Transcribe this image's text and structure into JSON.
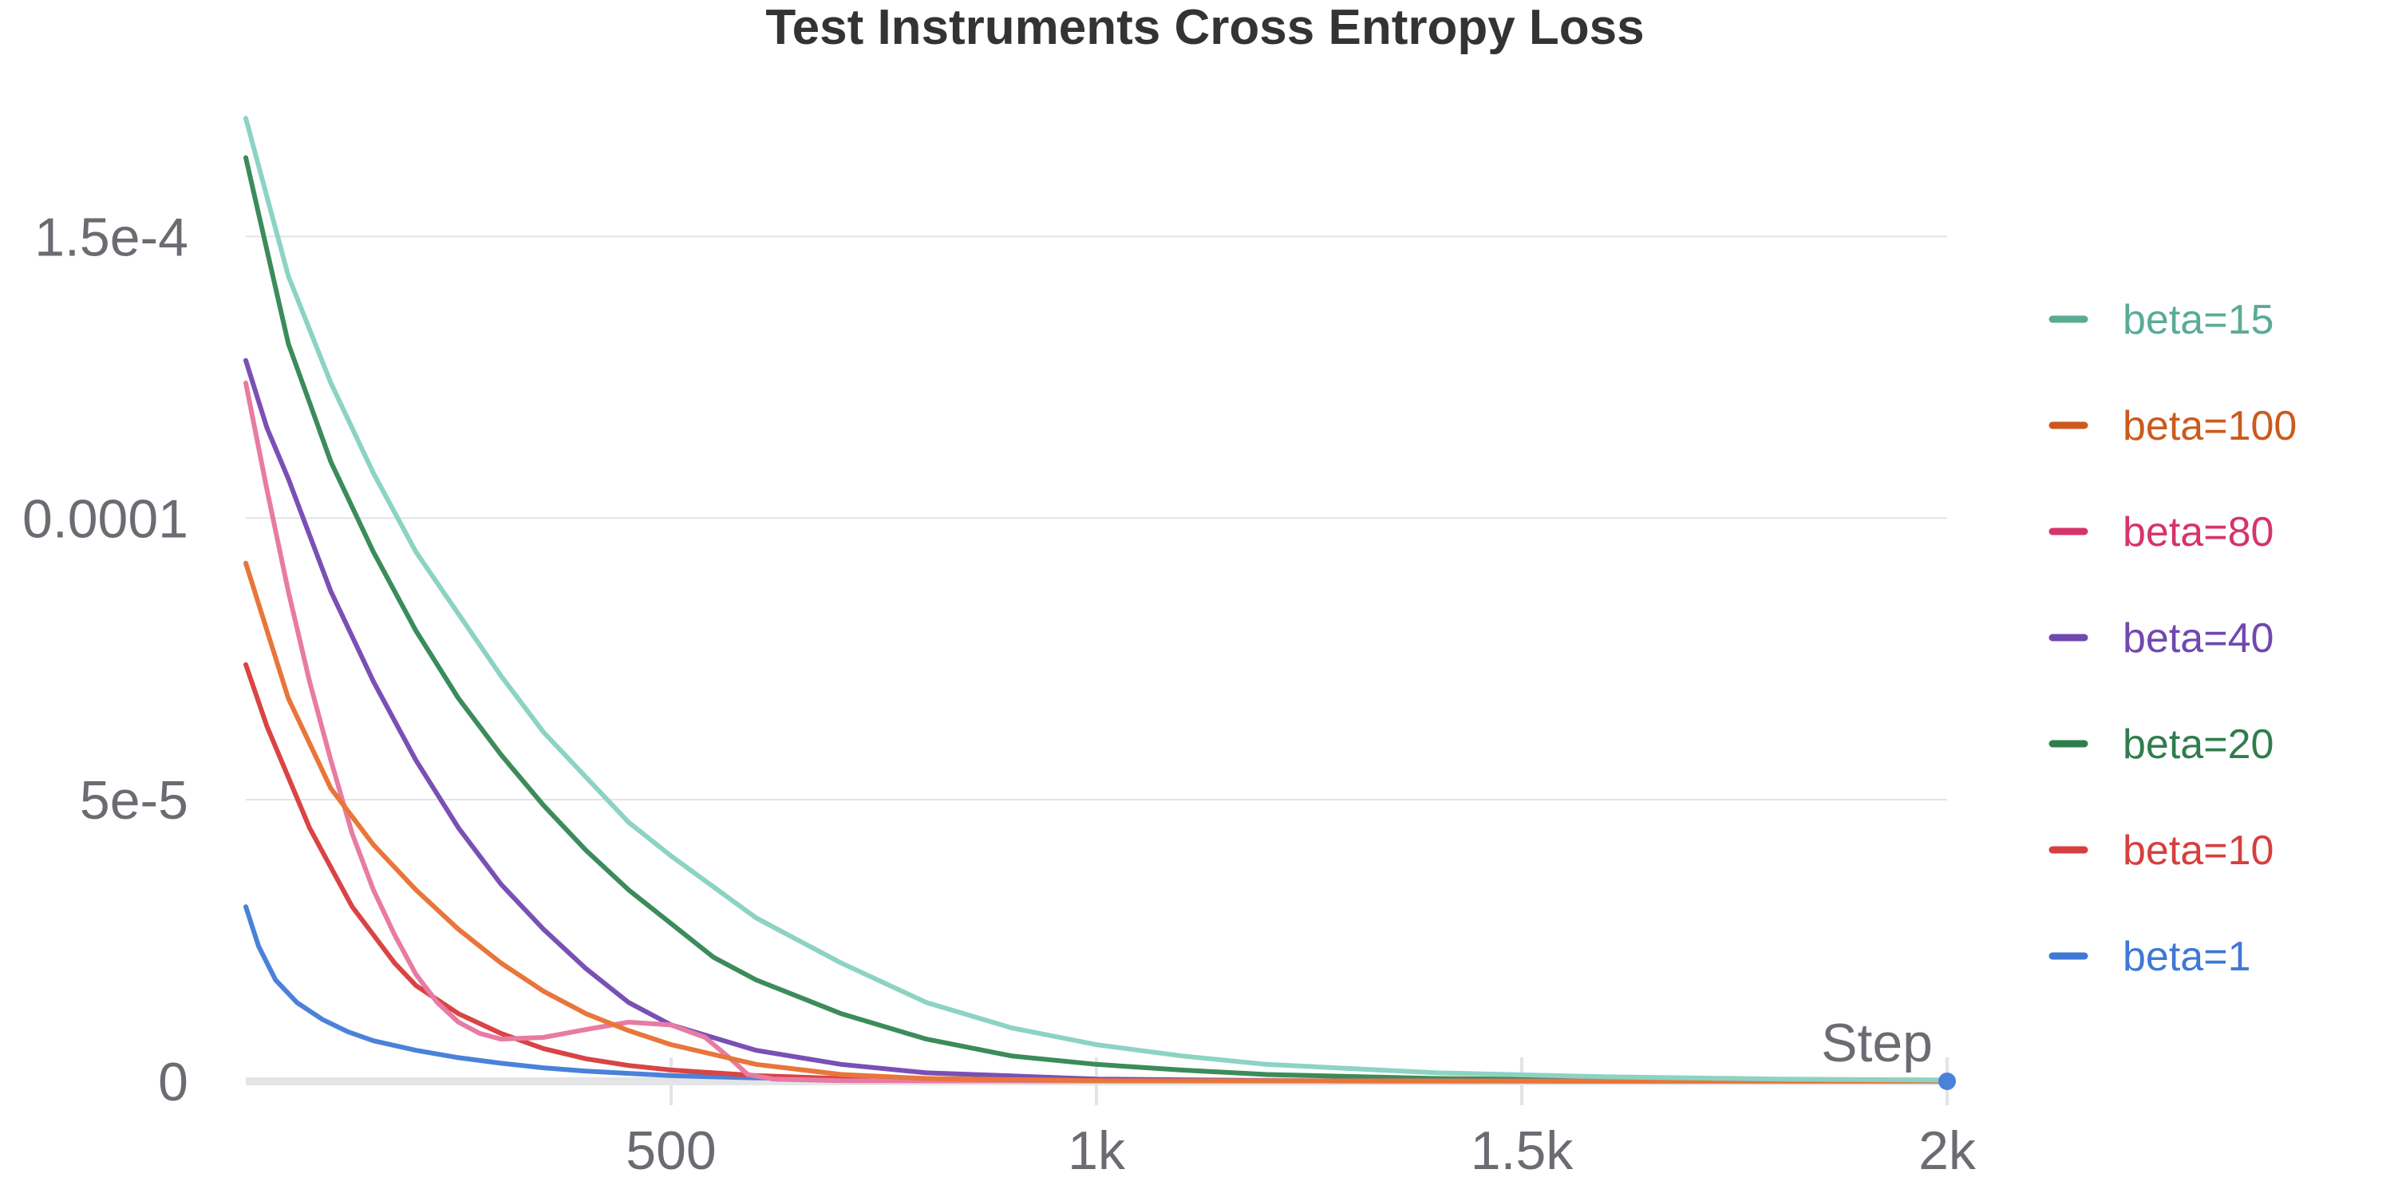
{
  "chart_data": {
    "type": "line",
    "title": "Test Instruments Cross Entropy Loss",
    "xlabel": "Step",
    "ylabel": "",
    "xlim": [
      0,
      2000
    ],
    "ylim": [
      0,
      0.000175
    ],
    "x_ticks": [
      {
        "value": 500,
        "label": "500"
      },
      {
        "value": 1000,
        "label": "1k"
      },
      {
        "value": 1500,
        "label": "1.5k"
      },
      {
        "value": 2000,
        "label": "2k"
      }
    ],
    "y_ticks": [
      {
        "value": 0,
        "label": "0"
      },
      {
        "value": 5e-05,
        "label": "5e-5"
      },
      {
        "value": 0.0001,
        "label": "0.0001"
      },
      {
        "value": 0.00015,
        "label": "1.5e-4"
      }
    ],
    "grid": true,
    "legend_position": "right",
    "series": [
      {
        "name": "beta=15",
        "color": "#8cd3c3",
        "legend_color": "#5aab96",
        "points": [
          [
            0,
            0.000171
          ],
          [
            50,
            0.000143
          ],
          [
            100,
            0.000124
          ],
          [
            150,
            0.000108
          ],
          [
            200,
            9.4e-05
          ],
          [
            250,
            8.3e-05
          ],
          [
            300,
            7.2e-05
          ],
          [
            350,
            6.2e-05
          ],
          [
            400,
            5.4e-05
          ],
          [
            450,
            4.6e-05
          ],
          [
            500,
            4e-05
          ],
          [
            600,
            2.9e-05
          ],
          [
            700,
            2.1e-05
          ],
          [
            800,
            1.4e-05
          ],
          [
            900,
            9.5e-06
          ],
          [
            1000,
            6.5e-06
          ],
          [
            1100,
            4.5e-06
          ],
          [
            1200,
            3e-06
          ],
          [
            1400,
            1.5e-06
          ],
          [
            1600,
            8e-07
          ],
          [
            1800,
            4e-07
          ],
          [
            2000,
            2e-07
          ]
        ]
      },
      {
        "name": "beta=100",
        "color": "#e8763b",
        "legend_color": "#cc5a1c",
        "points": [
          [
            0,
            9.2e-05
          ],
          [
            50,
            6.8e-05
          ],
          [
            100,
            5.2e-05
          ],
          [
            150,
            4.2e-05
          ],
          [
            200,
            3.4e-05
          ],
          [
            250,
            2.7e-05
          ],
          [
            300,
            2.1e-05
          ],
          [
            350,
            1.6e-05
          ],
          [
            400,
            1.2e-05
          ],
          [
            450,
            9e-06
          ],
          [
            500,
            6.5e-06
          ],
          [
            600,
            3e-06
          ],
          [
            700,
            1.2e-06
          ],
          [
            800,
            5e-07
          ],
          [
            1000,
            1e-07
          ],
          [
            2000,
            0
          ]
        ]
      },
      {
        "name": "beta=80",
        "color": "#e87ba3",
        "legend_color": "#d6336c",
        "points": [
          [
            0,
            0.000124
          ],
          [
            25,
            0.000105
          ],
          [
            50,
            8.7e-05
          ],
          [
            75,
            7.1e-05
          ],
          [
            100,
            5.7e-05
          ],
          [
            125,
            4.4e-05
          ],
          [
            150,
            3.4e-05
          ],
          [
            175,
            2.6e-05
          ],
          [
            200,
            1.9e-05
          ],
          [
            225,
            1.4e-05
          ],
          [
            250,
            1.05e-05
          ],
          [
            275,
            8.5e-06
          ],
          [
            300,
            7.5e-06
          ],
          [
            350,
            7.8e-06
          ],
          [
            400,
            9.2e-06
          ],
          [
            450,
            1.05e-05
          ],
          [
            500,
            1e-05
          ],
          [
            540,
            7.8e-06
          ],
          [
            570,
            4e-06
          ],
          [
            590,
            1.2e-06
          ],
          [
            620,
            4e-07
          ],
          [
            700,
            1e-07
          ],
          [
            2000,
            0
          ]
        ]
      },
      {
        "name": "beta=40",
        "color": "#7a50b5",
        "legend_color": "#7048b0",
        "points": [
          [
            0,
            0.000128
          ],
          [
            25,
            0.000116
          ],
          [
            50,
            0.000107
          ],
          [
            75,
            9.7e-05
          ],
          [
            100,
            8.7e-05
          ],
          [
            125,
            7.9e-05
          ],
          [
            150,
            7.1e-05
          ],
          [
            175,
            6.4e-05
          ],
          [
            200,
            5.7e-05
          ],
          [
            250,
            4.5e-05
          ],
          [
            300,
            3.5e-05
          ],
          [
            350,
            2.7e-05
          ],
          [
            400,
            2e-05
          ],
          [
            450,
            1.4e-05
          ],
          [
            500,
            1e-05
          ],
          [
            600,
            5.5e-06
          ],
          [
            700,
            3e-06
          ],
          [
            800,
            1.5e-06
          ],
          [
            1000,
            4e-07
          ],
          [
            1200,
            1e-07
          ],
          [
            2000,
            0
          ]
        ]
      },
      {
        "name": "beta=20",
        "color": "#3b8c5a",
        "legend_color": "#2f7d4c",
        "points": [
          [
            0,
            0.000164
          ],
          [
            50,
            0.000131
          ],
          [
            100,
            0.00011
          ],
          [
            150,
            9.4e-05
          ],
          [
            200,
            8e-05
          ],
          [
            250,
            6.8e-05
          ],
          [
            300,
            5.8e-05
          ],
          [
            350,
            4.9e-05
          ],
          [
            400,
            4.1e-05
          ],
          [
            450,
            3.4e-05
          ],
          [
            500,
            2.8e-05
          ],
          [
            550,
            2.2e-05
          ],
          [
            600,
            1.8e-05
          ],
          [
            700,
            1.2e-05
          ],
          [
            800,
            7.5e-06
          ],
          [
            900,
            4.5e-06
          ],
          [
            1000,
            3e-06
          ],
          [
            1100,
            2e-06
          ],
          [
            1200,
            1.2e-06
          ],
          [
            1400,
            5e-07
          ],
          [
            1600,
            2e-07
          ],
          [
            2000,
            0
          ]
        ]
      },
      {
        "name": "beta=10",
        "color": "#d94444",
        "legend_color": "#d63f3f",
        "points": [
          [
            0,
            7.4e-05
          ],
          [
            25,
            6.3e-05
          ],
          [
            50,
            5.4e-05
          ],
          [
            75,
            4.5e-05
          ],
          [
            100,
            3.8e-05
          ],
          [
            125,
            3.1e-05
          ],
          [
            150,
            2.6e-05
          ],
          [
            175,
            2.1e-05
          ],
          [
            200,
            1.7e-05
          ],
          [
            250,
            1.2e-05
          ],
          [
            300,
            8.5e-06
          ],
          [
            350,
            5.8e-06
          ],
          [
            400,
            4e-06
          ],
          [
            450,
            2.8e-06
          ],
          [
            500,
            2e-06
          ],
          [
            600,
            1e-06
          ],
          [
            700,
            5e-07
          ],
          [
            900,
            1e-07
          ],
          [
            2000,
            0
          ]
        ]
      },
      {
        "name": "beta=1",
        "color": "#4a82d9",
        "legend_color": "#3f78d6",
        "points": [
          [
            0,
            3.1e-05
          ],
          [
            15,
            2.4e-05
          ],
          [
            35,
            1.8e-05
          ],
          [
            60,
            1.4e-05
          ],
          [
            90,
            1.1e-05
          ],
          [
            120,
            8.8e-06
          ],
          [
            150,
            7.2e-06
          ],
          [
            200,
            5.5e-06
          ],
          [
            250,
            4.2e-06
          ],
          [
            300,
            3.2e-06
          ],
          [
            350,
            2.4e-06
          ],
          [
            400,
            1.8e-06
          ],
          [
            500,
            1e-06
          ],
          [
            600,
            6e-07
          ],
          [
            800,
            2e-07
          ],
          [
            1000,
            1e-07
          ],
          [
            2000,
            0
          ]
        ]
      }
    ]
  }
}
